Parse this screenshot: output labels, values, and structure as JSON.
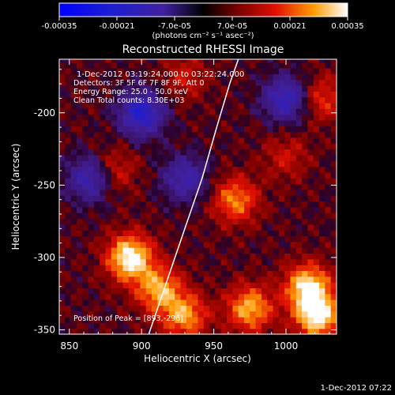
{
  "chart_data": {
    "type": "heatmap",
    "title": "Reconstructed RHESSI Image",
    "xlabel": "Heliocentric X (arcsec)",
    "ylabel": "Heliocentric Y (arcsec)",
    "xlim": [
      843,
      1035
    ],
    "ylim": [
      -353,
      -163
    ],
    "x_ticks": [
      850,
      900,
      950,
      1000
    ],
    "y_ticks": [
      -350,
      -300,
      -250,
      -200
    ],
    "colorbar": {
      "ticks": [
        "-0.00035",
        "-0.00021",
        "-7.0e-05",
        "7.0e-05",
        "0.00021",
        "0.00035"
      ],
      "range": [
        -0.00035,
        0.00035
      ],
      "unit_label": "(photons cm⁻² s⁻¹ asec⁻²)"
    },
    "annotations": {
      "time_range": "1-Dec-2012 03:19:24.000 to 03:22:24.000",
      "detectors": "Detectors: 3F 5F 6F 7F 8F 9F, Att 0",
      "energy": "Energy Range: 25.0 - 50.0 keV",
      "clean": "Clean     Total counts: 8.30E+03",
      "peak": "Position of Peak = [893,-296]"
    },
    "limb_curve": [
      [
        905,
        -353
      ],
      [
        918,
        -315
      ],
      [
        930,
        -280
      ],
      [
        942,
        -245
      ],
      [
        952,
        -210
      ],
      [
        961,
        -180
      ],
      [
        967,
        -163
      ]
    ],
    "hot_sources": [
      {
        "x": 892,
        "y": -300,
        "value": 0.00034
      },
      {
        "x": 912,
        "y": -322,
        "value": 0.00025
      },
      {
        "x": 930,
        "y": -340,
        "value": 0.00024
      },
      {
        "x": 965,
        "y": -260,
        "value": 0.00022
      },
      {
        "x": 975,
        "y": -335,
        "value": 0.00026
      },
      {
        "x": 1015,
        "y": -320,
        "value": 0.0003
      },
      {
        "x": 1022,
        "y": -340,
        "value": 0.00032
      },
      {
        "x": 880,
        "y": -240,
        "value": 0.00015
      },
      {
        "x": 1000,
        "y": -230,
        "value": 0.00012
      },
      {
        "x": 1025,
        "y": -190,
        "value": 0.00016
      },
      {
        "x": 930,
        "y": -175,
        "value": 0.00012
      }
    ],
    "cold_sources": [
      {
        "x": 900,
        "y": -200,
        "value": -0.0002
      },
      {
        "x": 1000,
        "y": -190,
        "value": -0.00016
      },
      {
        "x": 865,
        "y": -245,
        "value": -0.00015
      },
      {
        "x": 930,
        "y": -245,
        "value": -0.00012
      }
    ]
  },
  "footer": {
    "timestamp": "1-Dec-2012 07:22"
  }
}
